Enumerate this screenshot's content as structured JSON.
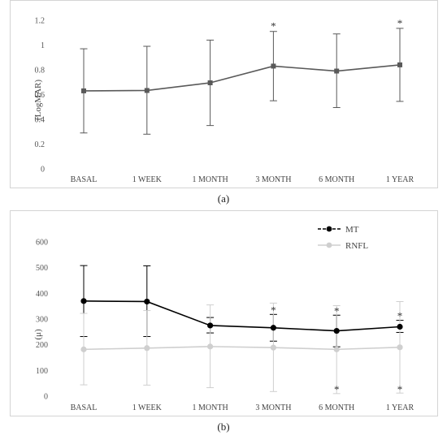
{
  "chart_data": [
    {
      "type": "line",
      "panel_label": "(a)",
      "title": "",
      "xlabel": "",
      "ylabel": "(LogMAR)",
      "ylim": [
        0,
        1.2
      ],
      "yticks": [
        "0",
        "0.2",
        "0.4",
        "0.6",
        "0.8",
        "1",
        "1.2"
      ],
      "categories": [
        "BASAL",
        "1  WEEK",
        "1 MONTH",
        "3 MONTH",
        "6 MONTH",
        "1 YEAR"
      ],
      "grid": false,
      "legend": "none",
      "series": [
        {
          "color": "#595959",
          "values": [
            0.63,
            0.633,
            0.695,
            0.83,
            0.79,
            0.84
          ],
          "error_low": [
            0.29,
            0.28,
            0.35,
            0.55,
            0.495,
            0.545
          ],
          "error_high": [
            0.97,
            0.99,
            1.04,
            1.11,
            1.09,
            1.135
          ],
          "significance": [
            "",
            "",
            "",
            "*",
            "",
            "*"
          ]
        }
      ]
    },
    {
      "type": "line",
      "panel_label": "(b)",
      "title": "",
      "xlabel": "",
      "ylabel": "(μ)",
      "ylim": [
        0,
        600
      ],
      "yticks": [
        "0",
        "100",
        "200",
        "300",
        "400",
        "500",
        "600"
      ],
      "categories": [
        "BASAL",
        "1  WEEK",
        "1 MONTH",
        "3 MONTH",
        "6 MONTH",
        "1 YEAR"
      ],
      "grid": false,
      "legend": "top-right",
      "series": [
        {
          "name": "MT",
          "color": "#000000",
          "values": [
            370,
            368,
            275,
            266,
            254,
            270
          ],
          "error_low": [
            232,
            232,
            246,
            214,
            192,
            248
          ],
          "error_high": [
            508,
            507,
            306,
            318,
            315,
            295
          ],
          "significance": [
            "",
            "",
            "",
            "*",
            "*",
            "*"
          ]
        },
        {
          "name": "RNFL",
          "color": "#cfcfcf",
          "values": [
            182,
            187,
            193,
            189,
            182,
            190
          ],
          "error_low": [
            44,
            43,
            33,
            18,
            10,
            12
          ],
          "error_high": [
            322,
            333,
            355,
            362,
            352,
            368
          ],
          "significance": [
            "",
            "",
            "",
            "",
            "*",
            "*"
          ]
        }
      ]
    }
  ]
}
